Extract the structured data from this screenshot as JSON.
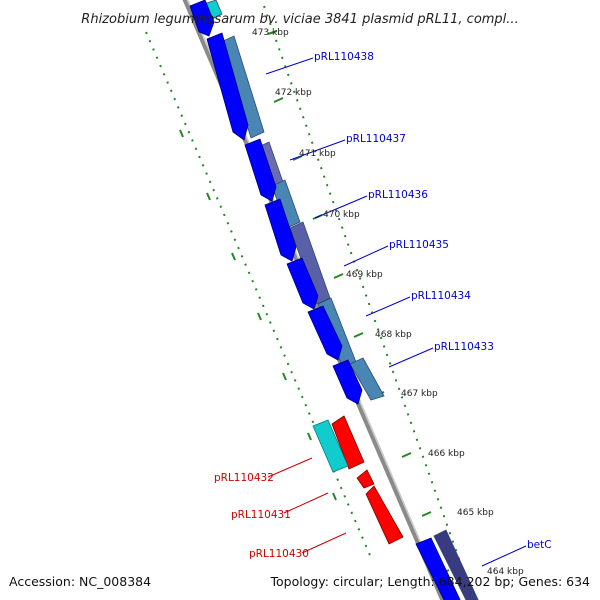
{
  "title": "Rhizobium leguminosarum bv. viciae 3841 plasmid pRL11, compl...",
  "footer": {
    "accession": "Accession: NC_008384",
    "topology": "Topology: circular; Length: 684,202 bp; Genes: 634"
  },
  "kbp_labels": [
    "473 kbp",
    "472 kbp",
    "471 kbp",
    "470 kbp",
    "469 kbp",
    "468 kbp",
    "467 kbp",
    "466 kbp",
    "465 kbp",
    "464 kbp"
  ],
  "genes": [
    {
      "name": "pRL110438",
      "strand": "forward"
    },
    {
      "name": "pRL110437",
      "strand": "forward"
    },
    {
      "name": "pRL110436",
      "strand": "forward"
    },
    {
      "name": "pRL110435",
      "strand": "forward"
    },
    {
      "name": "pRL110434",
      "strand": "forward"
    },
    {
      "name": "pRL110433",
      "strand": "forward"
    },
    {
      "name": "pRL110432",
      "strand": "reverse"
    },
    {
      "name": "pRL110431",
      "strand": "reverse"
    },
    {
      "name": "pRL110430",
      "strand": "reverse"
    },
    {
      "name": "betC",
      "strand": "forward"
    }
  ],
  "colors": {
    "forward_gene": "#0000ff",
    "forward_label": "#0000cc",
    "reverse_gene": "#ff0000",
    "reverse_label": "#cc0000",
    "cds_feature": "#4a86b4",
    "cds_feature_dark": "#3a3a80",
    "rna_feature": "#11cccc",
    "backbone": "#888888",
    "ruler": "#228822"
  }
}
